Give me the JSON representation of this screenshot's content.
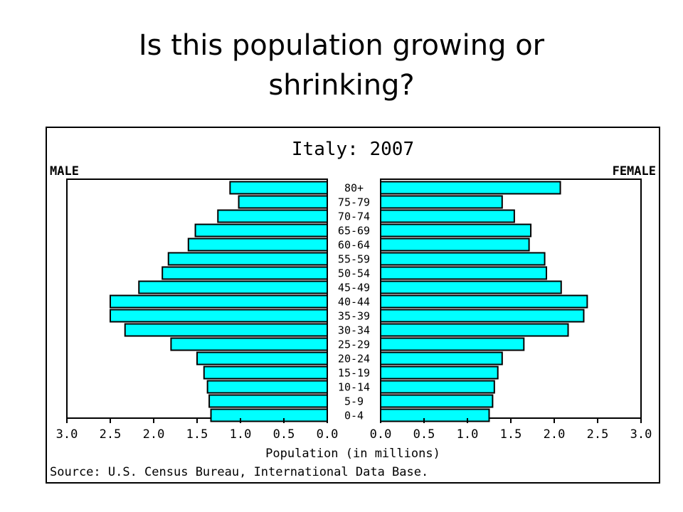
{
  "slide": {
    "title": "Is this population growing or shrinking?"
  },
  "chart_data": {
    "type": "bar",
    "subtype": "population-pyramid",
    "title": "Italy: 2007",
    "left_label": "MALE",
    "right_label": "FEMALE",
    "xlabel": "Population (in millions)",
    "source": "Source: U.S. Census Bureau, International Data Base.",
    "xlim": [
      0,
      3.0
    ],
    "x_ticks": [
      "3.0",
      "2.5",
      "2.0",
      "1.5",
      "1.0",
      "0.5",
      "0.0"
    ],
    "categories": [
      "80+",
      "75-79",
      "70-74",
      "65-69",
      "60-64",
      "55-59",
      "50-54",
      "45-49",
      "40-44",
      "35-39",
      "30-34",
      "25-29",
      "20-24",
      "15-19",
      "10-14",
      "5-9",
      "0-4"
    ],
    "series": [
      {
        "name": "MALE",
        "values": [
          1.12,
          1.02,
          1.26,
          1.52,
          1.6,
          1.83,
          1.9,
          2.17,
          2.5,
          2.5,
          2.33,
          1.8,
          1.5,
          1.42,
          1.38,
          1.36,
          1.34
        ]
      },
      {
        "name": "FEMALE",
        "values": [
          2.07,
          1.4,
          1.54,
          1.73,
          1.71,
          1.89,
          1.91,
          2.08,
          2.38,
          2.34,
          2.16,
          1.65,
          1.4,
          1.35,
          1.31,
          1.29,
          1.25
        ]
      }
    ],
    "grid": false,
    "colors": {
      "bar_fill": "#00ffff",
      "bar_stroke": "#000000"
    }
  }
}
